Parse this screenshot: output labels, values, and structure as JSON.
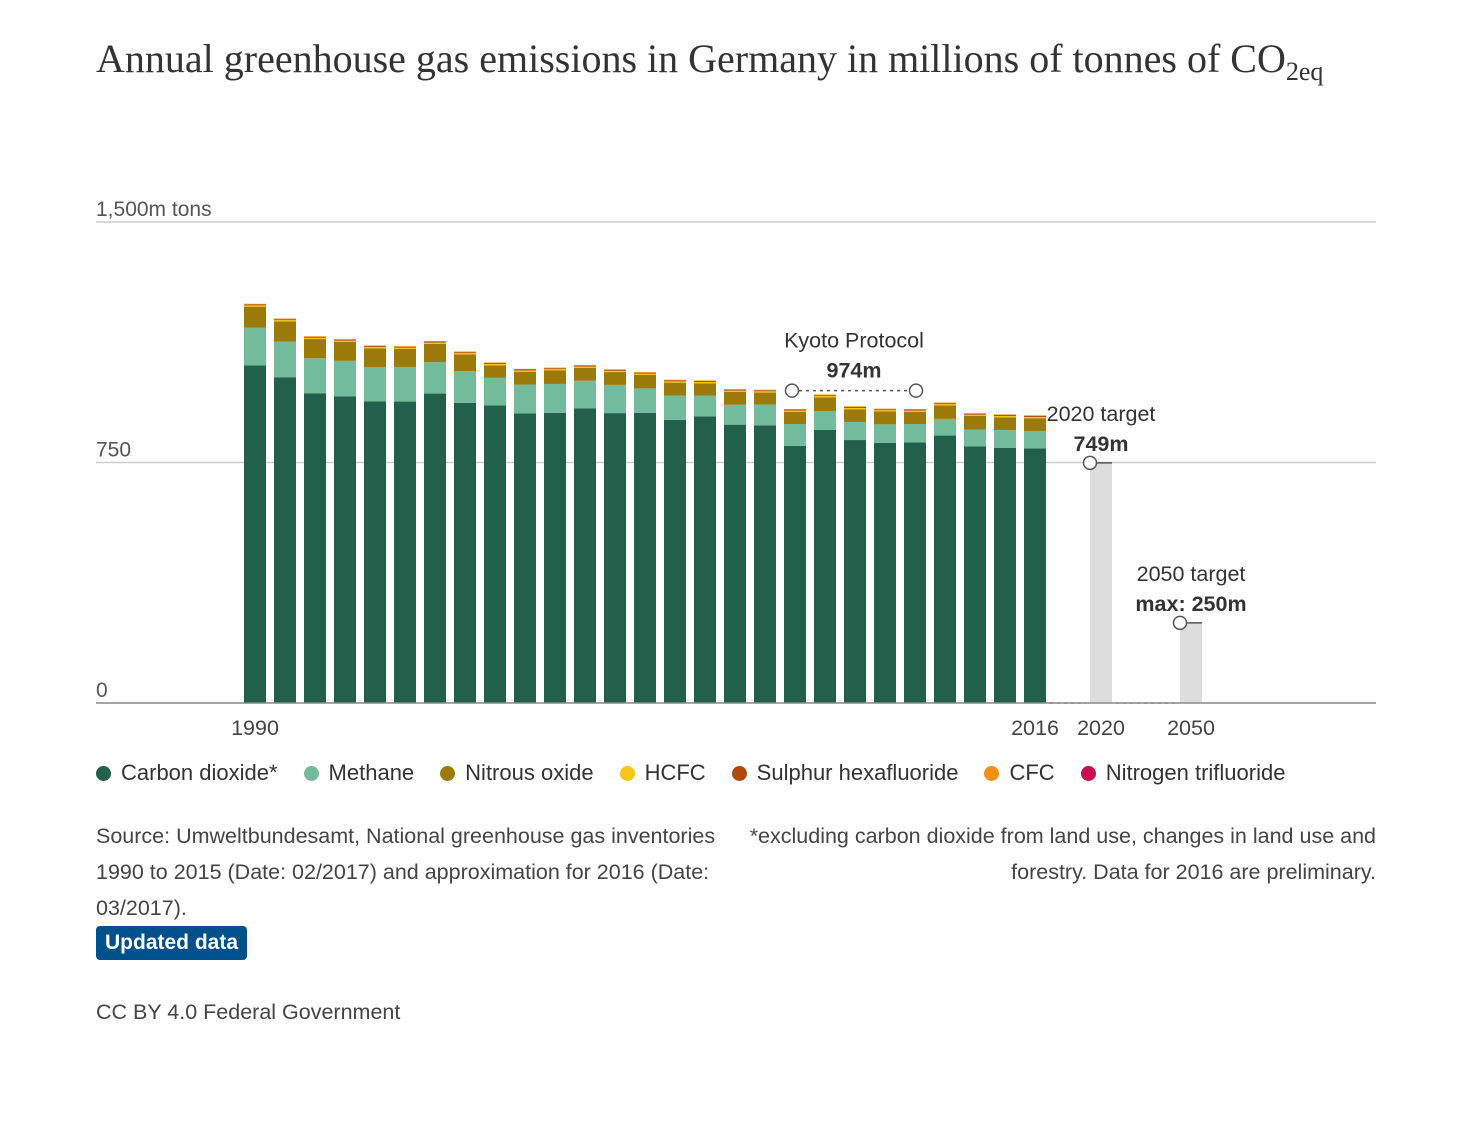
{
  "header": {
    "title_main": "Annual greenhouse gas emissions in Germany in millions of tonnes of CO",
    "title_sub": "2eq"
  },
  "chart_data": {
    "type": "bar",
    "stacked": true,
    "title": "Annual greenhouse gas emissions in Germany in millions of tonnes of CO2eq",
    "ylabel": "1,500m tons",
    "ylim": [
      0,
      1500
    ],
    "yticks": [
      {
        "value": 0,
        "label": "0"
      },
      {
        "value": 750,
        "label": "750"
      },
      {
        "value": 1500,
        "label": "1,500m tons"
      }
    ],
    "grid": true,
    "x": [
      1990,
      1991,
      1992,
      1993,
      1994,
      1995,
      1996,
      1997,
      1998,
      1999,
      2000,
      2001,
      2002,
      2003,
      2004,
      2005,
      2006,
      2007,
      2008,
      2009,
      2010,
      2011,
      2012,
      2013,
      2014,
      2015,
      2016
    ],
    "x_tick_labels": [
      {
        "index": 0,
        "label": "1990"
      },
      {
        "index": 26,
        "label": "2016"
      }
    ],
    "series": [
      {
        "name": "Carbon dioxide*",
        "color": "#22604c",
        "values": [
          1053,
          1016,
          966,
          956,
          941,
          940,
          965,
          936,
          928,
          903,
          905,
          919,
          904,
          905,
          883,
          894,
          868,
          866,
          802,
          852,
          820,
          811,
          813,
          834,
          800,
          796,
          794
        ]
      },
      {
        "name": "Methane",
        "color": "#73bb9d",
        "values": [
          118,
          111,
          109,
          111,
          106,
          108,
          98,
          99,
          86,
          90,
          90,
          86,
          88,
          76,
          76,
          65,
          62,
          65,
          68,
          58,
          56,
          58,
          57,
          52,
          53,
          55,
          54
        ]
      },
      {
        "name": "Nitrous oxide",
        "color": "#9c7a0a",
        "values": [
          65,
          63,
          60,
          59,
          59,
          56,
          57,
          52,
          39,
          40,
          42,
          40,
          40,
          42,
          40,
          38,
          40,
          37,
          38,
          43,
          40,
          40,
          38,
          42,
          42,
          40,
          40
        ]
      },
      {
        "name": "HCFC",
        "color": "#f5c518",
        "values": [
          4,
          4,
          4,
          4,
          4,
          4,
          4,
          4,
          4,
          4,
          4,
          4,
          4,
          4,
          4,
          4,
          4,
          4,
          4,
          4,
          4,
          4,
          4,
          4,
          4,
          4,
          4
        ]
      },
      {
        "name": "Sulphur hexafluoride",
        "color": "#b04a0a",
        "values": [
          3,
          3,
          3,
          3,
          3,
          3,
          3,
          3,
          3,
          3,
          3,
          3,
          3,
          3,
          3,
          3,
          3,
          3,
          3,
          3,
          3,
          3,
          3,
          3,
          3,
          3,
          3
        ]
      },
      {
        "name": "CFC",
        "color": "#f39012",
        "values": [
          2,
          2,
          2,
          2,
          2,
          2,
          2,
          2,
          2,
          2,
          2,
          2,
          2,
          2,
          2,
          2,
          2,
          2,
          2,
          2,
          2,
          2,
          2,
          2,
          2,
          2,
          2
        ]
      },
      {
        "name": "Nitrogen trifluoride",
        "color": "#cc0a4f",
        "values": [
          0,
          0,
          0,
          0,
          0,
          0,
          0,
          0,
          0,
          0,
          0,
          0,
          0,
          0,
          0,
          0,
          0,
          0,
          0,
          0,
          0,
          0,
          0,
          0,
          0,
          0,
          0
        ]
      }
    ],
    "targets": [
      {
        "year_label": "2020",
        "name": "2020 target",
        "value_label": "749m",
        "value": 749
      },
      {
        "year_label": "2050",
        "name": "2050 target",
        "value_label": "max: 250m",
        "value": 250
      }
    ],
    "annotations": [
      {
        "name": "Kyoto Protocol",
        "value_label": "974m",
        "value": 974,
        "from_index": 18,
        "to_index": 22
      }
    ],
    "legend_position": "bottom"
  },
  "footer": {
    "source": "Source: Umweltbundesamt, National greenhouse gas inventories 1990 to 2015 (Date: 02/2017) and approximation for 2016 (Date: 03/2017).",
    "footnote": "*excluding carbon dioxide from land use, changes in land use and forestry. Data for 2016 are preliminary.",
    "updated_label": "Updated data",
    "license": "CC BY 4.0 Federal Government"
  },
  "colors": {
    "target_bar": "#dddddd",
    "grid": "#cccccc",
    "axis": "#888888",
    "link": "#00508c"
  }
}
